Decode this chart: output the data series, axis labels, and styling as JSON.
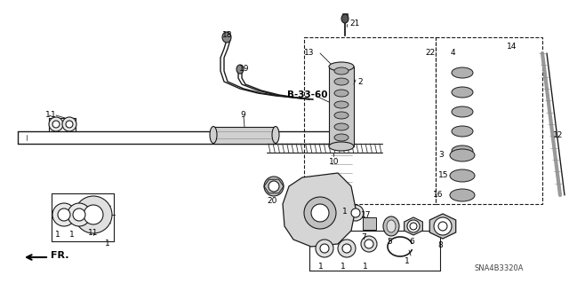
{
  "bg_color": "#ffffff",
  "diagram_code": "SNA4B3320A",
  "bold_label": "B-33-60",
  "fig_width": 6.4,
  "fig_height": 3.19,
  "dpi": 100,
  "lc": "#1a1a1a",
  "gray": "#888888",
  "light_gray": "#cccccc",
  "mid_gray": "#aaaaaa"
}
